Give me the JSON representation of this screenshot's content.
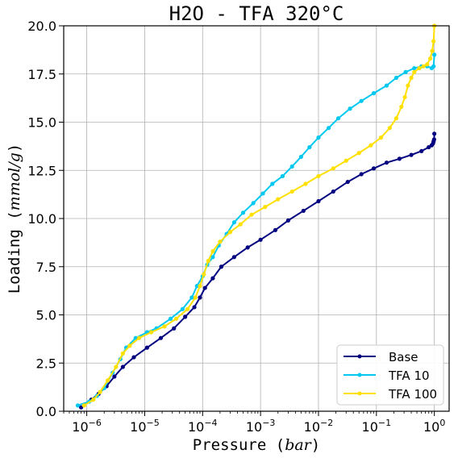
{
  "chart_data": {
    "type": "line",
    "title": "H2O - TFA 320°C",
    "xlabel": "Pressure",
    "xlabel_unit": "bar",
    "ylabel": "Loading",
    "ylabel_unit": "mmol/g",
    "xscale": "log",
    "xlim": [
      4e-07,
      1.8
    ],
    "ylim": [
      0,
      20
    ],
    "xticks": [
      1e-06,
      1e-05,
      0.0001,
      0.001,
      0.01,
      0.1,
      1
    ],
    "xtick_labels": [
      {
        "base": "10",
        "exp": "−6"
      },
      {
        "base": "10",
        "exp": "−5"
      },
      {
        "base": "10",
        "exp": "−4"
      },
      {
        "base": "10",
        "exp": "−3"
      },
      {
        "base": "10",
        "exp": "−2"
      },
      {
        "base": "10",
        "exp": "−1"
      },
      {
        "base": "10",
        "exp": "0"
      }
    ],
    "yticks": [
      0,
      2.5,
      5,
      7.5,
      10,
      12.5,
      15,
      17.5,
      20
    ],
    "ytick_labels": [
      "0.0",
      "2.5",
      "5.0",
      "7.5",
      "10.0",
      "12.5",
      "15.0",
      "17.5",
      "20.0"
    ],
    "grid": true,
    "legend_position": "bottom-right",
    "series": [
      {
        "name": "Base",
        "color": "#000080",
        "points": [
          [
            8e-07,
            0.2
          ],
          [
            1.2e-06,
            0.6
          ],
          [
            1.6e-06,
            0.9
          ],
          [
            2.2e-06,
            1.3
          ],
          [
            3e-06,
            1.8
          ],
          [
            4.2e-06,
            2.3
          ],
          [
            6.5e-06,
            2.8
          ],
          [
            1.1e-05,
            3.3
          ],
          [
            1.9e-05,
            3.8
          ],
          [
            3.2e-05,
            4.3
          ],
          [
            5e-05,
            4.9
          ],
          [
            7.2e-05,
            5.4
          ],
          [
            9e-05,
            5.9
          ],
          [
            0.00011,
            6.4
          ],
          [
            0.00015,
            6.9
          ],
          [
            0.00021,
            7.5
          ],
          [
            0.00035,
            8.0
          ],
          [
            0.0006,
            8.5
          ],
          [
            0.001,
            8.9
          ],
          [
            0.0018,
            9.4
          ],
          [
            0.003,
            9.9
          ],
          [
            0.0055,
            10.4
          ],
          [
            0.01,
            10.9
          ],
          [
            0.018,
            11.4
          ],
          [
            0.032,
            11.9
          ],
          [
            0.055,
            12.3
          ],
          [
            0.09,
            12.6
          ],
          [
            0.15,
            12.9
          ],
          [
            0.25,
            13.1
          ],
          [
            0.4,
            13.3
          ],
          [
            0.6,
            13.5
          ],
          [
            0.8,
            13.7
          ],
          [
            0.9,
            13.8
          ],
          [
            0.95,
            13.9
          ],
          [
            0.97,
            14.0
          ],
          [
            0.99,
            14.1
          ],
          [
            1.0,
            14.4
          ]
        ]
      },
      {
        "name": "TFA 10",
        "color": "#00c8f0",
        "points": [
          [
            7e-07,
            0.3
          ],
          [
            1.1e-06,
            0.5
          ],
          [
            1.5e-06,
            0.8
          ],
          [
            2e-06,
            1.2
          ],
          [
            2.8e-06,
            2.0
          ],
          [
            3.8e-06,
            2.7
          ],
          [
            4.8e-06,
            3.3
          ],
          [
            7e-06,
            3.8
          ],
          [
            1.1e-05,
            4.1
          ],
          [
            1.6e-05,
            4.3
          ],
          [
            2.8e-05,
            4.8
          ],
          [
            4.5e-05,
            5.3
          ],
          [
            6.5e-05,
            5.9
          ],
          [
            8e-05,
            6.5
          ],
          [
            0.0001,
            7.0
          ],
          [
            0.00012,
            7.6
          ],
          [
            0.00015,
            8.0
          ],
          [
            0.00019,
            8.6
          ],
          [
            0.00026,
            9.2
          ],
          [
            0.00035,
            9.8
          ],
          [
            0.0005,
            10.3
          ],
          [
            0.00075,
            10.8
          ],
          [
            0.0011,
            11.3
          ],
          [
            0.0016,
            11.8
          ],
          [
            0.0024,
            12.2
          ],
          [
            0.0035,
            12.7
          ],
          [
            0.005,
            13.2
          ],
          [
            0.007,
            13.7
          ],
          [
            0.01,
            14.2
          ],
          [
            0.015,
            14.7
          ],
          [
            0.022,
            15.2
          ],
          [
            0.035,
            15.7
          ],
          [
            0.055,
            16.1
          ],
          [
            0.09,
            16.5
          ],
          [
            0.15,
            16.9
          ],
          [
            0.22,
            17.3
          ],
          [
            0.32,
            17.6
          ],
          [
            0.45,
            17.8
          ],
          [
            0.6,
            17.9
          ],
          [
            0.75,
            17.9
          ],
          [
            0.9,
            17.8
          ],
          [
            0.97,
            17.9
          ],
          [
            1.0,
            18.5
          ]
        ]
      },
      {
        "name": "TFA 100",
        "color": "#ffe000",
        "points": [
          [
            9e-07,
            0.3
          ],
          [
            1.3e-06,
            0.6
          ],
          [
            1.7e-06,
            1.0
          ],
          [
            2.3e-06,
            1.6
          ],
          [
            3.2e-06,
            2.3
          ],
          [
            4.2e-06,
            3.0
          ],
          [
            5.5e-06,
            3.4
          ],
          [
            8e-06,
            3.8
          ],
          [
            1.3e-05,
            4.1
          ],
          [
            2.2e-05,
            4.4
          ],
          [
            3.5e-05,
            4.8
          ],
          [
            5.5e-05,
            5.3
          ],
          [
            7.5e-05,
            5.9
          ],
          [
            9e-05,
            6.5
          ],
          [
            0.000105,
            7.1
          ],
          [
            0.000125,
            7.8
          ],
          [
            0.00015,
            8.3
          ],
          [
            0.0002,
            8.8
          ],
          [
            0.0003,
            9.3
          ],
          [
            0.00045,
            9.7
          ],
          [
            0.0007,
            10.2
          ],
          [
            0.0012,
            10.6
          ],
          [
            0.002,
            11.0
          ],
          [
            0.0035,
            11.4
          ],
          [
            0.006,
            11.8
          ],
          [
            0.01,
            12.2
          ],
          [
            0.018,
            12.6
          ],
          [
            0.03,
            13.0
          ],
          [
            0.05,
            13.4
          ],
          [
            0.08,
            13.8
          ],
          [
            0.12,
            14.2
          ],
          [
            0.17,
            14.7
          ],
          [
            0.22,
            15.2
          ],
          [
            0.27,
            15.8
          ],
          [
            0.31,
            16.3
          ],
          [
            0.35,
            16.9
          ],
          [
            0.4,
            17.3
          ],
          [
            0.45,
            17.6
          ],
          [
            0.55,
            17.8
          ],
          [
            0.65,
            17.9
          ],
          [
            0.75,
            18.0
          ],
          [
            0.85,
            18.3
          ],
          [
            0.92,
            18.7
          ],
          [
            0.97,
            19.2
          ],
          [
            1.0,
            20.0
          ]
        ]
      }
    ]
  }
}
